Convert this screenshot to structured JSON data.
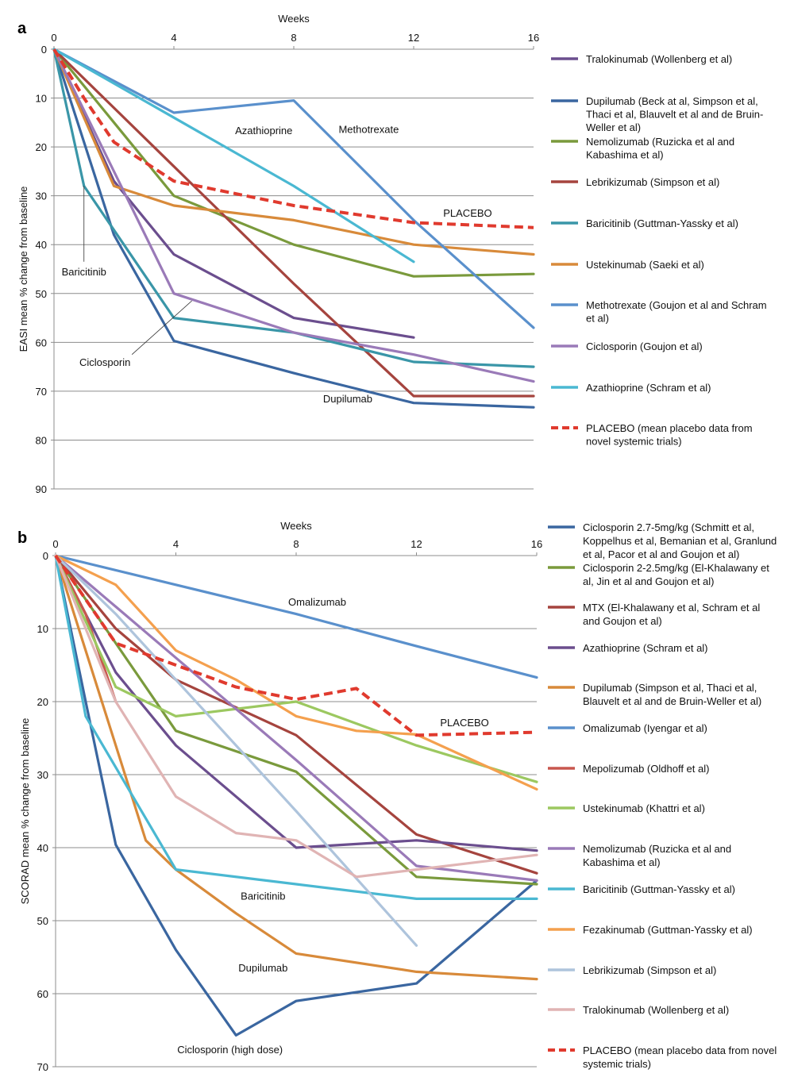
{
  "chart_data": [
    {
      "panel": "a",
      "type": "line",
      "xlabel": "Weeks",
      "ylabel": "EASI mean % change from baseline",
      "xlim": [
        0,
        16
      ],
      "ylim": [
        0,
        90
      ],
      "xticks": [
        0,
        4,
        8,
        12,
        16
      ],
      "yticks": [
        0,
        10,
        20,
        30,
        40,
        50,
        60,
        70,
        80,
        90
      ],
      "y_inverted": true,
      "grid": "horizontal",
      "legend_placement": "right",
      "series": [
        {
          "legend": [
            "Tralokinumab (Wollenberg et al)"
          ],
          "color": "#6b4e8e",
          "dashed": false,
          "points": [
            [
              0,
              0
            ],
            [
              2,
              27
            ],
            [
              4,
              42
            ],
            [
              8,
              55
            ],
            [
              12,
              59
            ]
          ]
        },
        {
          "legend": [
            "Dupilumab (Beck at al, Simpson et al,",
            "Thaci et al, Blauvelt et al and de Bruin-",
            "Weller et al)"
          ],
          "color": "#3a66a0",
          "dashed": false,
          "points": [
            [
              0,
              0
            ],
            [
              2,
              38
            ],
            [
              4,
              59.7
            ],
            [
              8,
              66.3
            ],
            [
              12,
              72.4
            ],
            [
              16,
              73.3
            ]
          ]
        },
        {
          "legend": [
            "Nemolizumab (Ruzicka et al and",
            "Kabashima et al)"
          ],
          "color": "#7a9a3c",
          "dashed": false,
          "points": [
            [
              0,
              0
            ],
            [
              2,
              15
            ],
            [
              4,
              30
            ],
            [
              8,
              40
            ],
            [
              12,
              46.5
            ],
            [
              16,
              46
            ]
          ]
        },
        {
          "legend": [
            "Lebrikizumab (Simpson et al)"
          ],
          "color": "#a5443e",
          "dashed": false,
          "points": [
            [
              0,
              0
            ],
            [
              2,
              12
            ],
            [
              4,
              24
            ],
            [
              8,
              48
            ],
            [
              12,
              71
            ],
            [
              16,
              71
            ]
          ]
        },
        {
          "legend": [
            "Baricitinib (Guttman-Yassky et al)"
          ],
          "color": "#3a96a8",
          "dashed": false,
          "points": [
            [
              0,
              0
            ],
            [
              1,
              28
            ],
            [
              2,
              37
            ],
            [
              4,
              55
            ],
            [
              8,
              58
            ],
            [
              12,
              64
            ],
            [
              16,
              65
            ]
          ]
        },
        {
          "legend": [
            "Ustekinumab (Saeki et al)"
          ],
          "color": "#d88a3a",
          "dashed": false,
          "points": [
            [
              0,
              0
            ],
            [
              2,
              28
            ],
            [
              4,
              32
            ],
            [
              8,
              35
            ],
            [
              12,
              40
            ],
            [
              16,
              42
            ]
          ]
        },
        {
          "legend": [
            "Methotrexate (Goujon et al and Schram",
            "et al)"
          ],
          "color": "#5a90cc",
          "dashed": false,
          "points": [
            [
              0,
              0
            ],
            [
              4,
              13
            ],
            [
              8,
              10.5
            ],
            [
              12,
              35
            ],
            [
              16,
              57
            ]
          ]
        },
        {
          "legend": [
            "Ciclosporin (Goujon et al)"
          ],
          "color": "#9a7ab8",
          "dashed": false,
          "points": [
            [
              0,
              0
            ],
            [
              2,
              25
            ],
            [
              4,
              50
            ],
            [
              8,
              58
            ],
            [
              12,
              62.5
            ],
            [
              16,
              68
            ]
          ]
        },
        {
          "legend": [
            "Azathioprine (Schram et al)"
          ],
          "color": "#4ab8d2",
          "dashed": false,
          "points": [
            [
              0,
              0
            ],
            [
              4,
              14
            ],
            [
              8,
              28
            ],
            [
              12,
              43.5
            ]
          ]
        },
        {
          "legend": [
            "PLACEBO (mean placebo data from",
            "novel systemic trials)"
          ],
          "color": "#e03a2e",
          "dashed": true,
          "points": [
            [
              0,
              0
            ],
            [
              1,
              10
            ],
            [
              2,
              19
            ],
            [
              4,
              27
            ],
            [
              8,
              32
            ],
            [
              12,
              35.5
            ],
            [
              16,
              36.5
            ]
          ]
        }
      ],
      "annotations": [
        {
          "text": "Azathioprine",
          "x": 7,
          "y": 16.6
        },
        {
          "text": "Methotrexate",
          "x": 10.5,
          "y": 16.3
        },
        {
          "text": "PLACEBO",
          "x": 13.8,
          "y": 33.5
        },
        {
          "text": "Baricitinib",
          "x": 1,
          "y": 45.5
        },
        {
          "text": "Ciclosporin",
          "x": 1.7,
          "y": 64
        },
        {
          "text": "Dupilumab",
          "x": 9.8,
          "y": 71.5
        }
      ]
    },
    {
      "panel": "b",
      "type": "line",
      "xlabel": "Weeks",
      "ylabel": "SCORAD mean % change from baseline",
      "xlim": [
        0,
        16
      ],
      "ylim": [
        0,
        70
      ],
      "xticks": [
        0,
        4,
        8,
        12,
        16
      ],
      "yticks": [
        0,
        10,
        20,
        30,
        40,
        50,
        60,
        70
      ],
      "y_inverted": true,
      "grid": "horizontal",
      "legend_placement": "right",
      "series": [
        {
          "legend": [
            "Ciclosporin 2.7-5mg/kg (Schmitt et al,",
            "Koppelhus et al, Bemanian et al, Granlund",
            "et al, Pacor et al and Goujon et al)"
          ],
          "color": "#3a66a0",
          "dashed": false,
          "points": [
            [
              0,
              0
            ],
            [
              1,
              20
            ],
            [
              2,
              39.6
            ],
            [
              4,
              54
            ],
            [
              6,
              65.7
            ],
            [
              8,
              61
            ],
            [
              12,
              58.6
            ],
            [
              16,
              44.5
            ]
          ]
        },
        {
          "legend": [
            "Ciclosporin 2-2.5mg/kg (El-Khalawany et",
            "al, Jin et al and Goujon et al)"
          ],
          "color": "#7a9a3c",
          "dashed": false,
          "points": [
            [
              0,
              0
            ],
            [
              2,
              12
            ],
            [
              4,
              24
            ],
            [
              8,
              29.6
            ],
            [
              12,
              44
            ],
            [
              16,
              45
            ]
          ]
        },
        {
          "legend": [
            "MTX (El-Khalawany et al, Schram et al",
            "and Goujon et al)"
          ],
          "color": "#a5443e",
          "dashed": false,
          "points": [
            [
              0,
              0
            ],
            [
              2,
              10
            ],
            [
              4,
              17
            ],
            [
              8,
              24.6
            ],
            [
              12,
              38.2
            ],
            [
              16,
              43.5
            ]
          ]
        },
        {
          "legend": [
            "Azathioprine (Schram et al)"
          ],
          "color": "#6b4e8e",
          "dashed": false,
          "points": [
            [
              0,
              0
            ],
            [
              2,
              16
            ],
            [
              4,
              26
            ],
            [
              8,
              40
            ],
            [
              12,
              39
            ],
            [
              16,
              40.4
            ]
          ]
        },
        {
          "legend": [
            "Dupilumab (Simpson et al, Thaci et al,",
            "Blauvelt et al and de Bruin-Weller et al)"
          ],
          "color": "#d88a3a",
          "dashed": false,
          "points": [
            [
              0,
              0
            ],
            [
              2,
              26
            ],
            [
              3,
              39
            ],
            [
              4,
              43
            ],
            [
              6,
              49
            ],
            [
              8,
              54.5
            ],
            [
              12,
              57
            ],
            [
              16,
              58
            ]
          ]
        },
        {
          "legend": [
            "Omalizumab (Iyengar et al)"
          ],
          "color": "#5a90cc",
          "dashed": false,
          "points": [
            [
              0,
              0
            ],
            [
              4,
              4
            ],
            [
              8,
              8
            ],
            [
              12,
              12.4
            ],
            [
              16,
              16.7
            ]
          ]
        },
        {
          "legend": [
            "Mepolizumab (Oldhoff et al)"
          ],
          "color": "#c8574e",
          "dashed": false,
          "points": [
            [
              0,
              0
            ],
            [
              1,
              8
            ],
            [
              2,
              20
            ]
          ]
        },
        {
          "legend": [
            "Ustekinumab (Khattri et al)"
          ],
          "color": "#9cc860",
          "dashed": false,
          "points": [
            [
              0,
              0
            ],
            [
              2,
              18
            ],
            [
              4,
              22
            ],
            [
              8,
              20
            ],
            [
              12,
              26
            ],
            [
              16,
              31
            ]
          ]
        },
        {
          "legend": [
            "Nemolizumab (Ruzicka et al and",
            "Kabashima et al)"
          ],
          "color": "#9a7ab8",
          "dashed": false,
          "points": [
            [
              0,
              0
            ],
            [
              2,
              7
            ],
            [
              4,
              14
            ],
            [
              8,
              28
            ],
            [
              12,
              42.5
            ],
            [
              16,
              44.5
            ]
          ]
        },
        {
          "legend": [
            "Baricitinib (Guttman-Yassky et al)"
          ],
          "color": "#4ab8d2",
          "dashed": false,
          "points": [
            [
              0,
              0
            ],
            [
              1,
              22
            ],
            [
              2,
              29
            ],
            [
              4,
              43
            ],
            [
              8,
              45
            ],
            [
              12,
              47
            ],
            [
              16,
              47
            ]
          ]
        },
        {
          "legend": [
            "Fezakinumab (Guttman-Yassky et al)"
          ],
          "color": "#f4a04e",
          "dashed": false,
          "points": [
            [
              0,
              0
            ],
            [
              2,
              4
            ],
            [
              4,
              13
            ],
            [
              6,
              17
            ],
            [
              8,
              22
            ],
            [
              10,
              24
            ],
            [
              12,
              24.5
            ],
            [
              16,
              32
            ]
          ]
        },
        {
          "legend": [
            "Lebrikizumab (Simpson et al)"
          ],
          "color": "#aec4dc",
          "dashed": false,
          "points": [
            [
              0,
              0
            ],
            [
              2,
              8
            ],
            [
              4,
              17
            ],
            [
              8,
              35
            ],
            [
              12,
              53.4
            ]
          ]
        },
        {
          "legend": [
            "Tralokinumab (Wollenberg et al)"
          ],
          "color": "#e0b4b4",
          "dashed": false,
          "points": [
            [
              0,
              0
            ],
            [
              2,
              20
            ],
            [
              4,
              33
            ],
            [
              6,
              38
            ],
            [
              8,
              39
            ],
            [
              10,
              44
            ],
            [
              12,
              43
            ],
            [
              16,
              41
            ]
          ]
        },
        {
          "legend": [
            "PLACEBO (mean placebo data from novel",
            "systemic trials)"
          ],
          "color": "#e03a2e",
          "dashed": true,
          "points": [
            [
              0,
              0
            ],
            [
              2,
              12
            ],
            [
              4,
              15
            ],
            [
              6,
              18
            ],
            [
              8,
              19.7
            ],
            [
              10,
              18.2
            ],
            [
              12,
              24.6
            ],
            [
              16,
              24.2
            ]
          ]
        }
      ],
      "annotations": [
        {
          "text": "Omalizumab",
          "x": 8.7,
          "y": 6.3
        },
        {
          "text": "PLACEBO",
          "x": 13.6,
          "y": 22.8
        },
        {
          "text": "Baricitinib",
          "x": 6.9,
          "y": 46.6
        },
        {
          "text": "Dupilumab",
          "x": 6.9,
          "y": 56.4
        },
        {
          "text": "Ciclosporin (high dose)",
          "x": 5.8,
          "y": 67.6
        }
      ]
    }
  ]
}
